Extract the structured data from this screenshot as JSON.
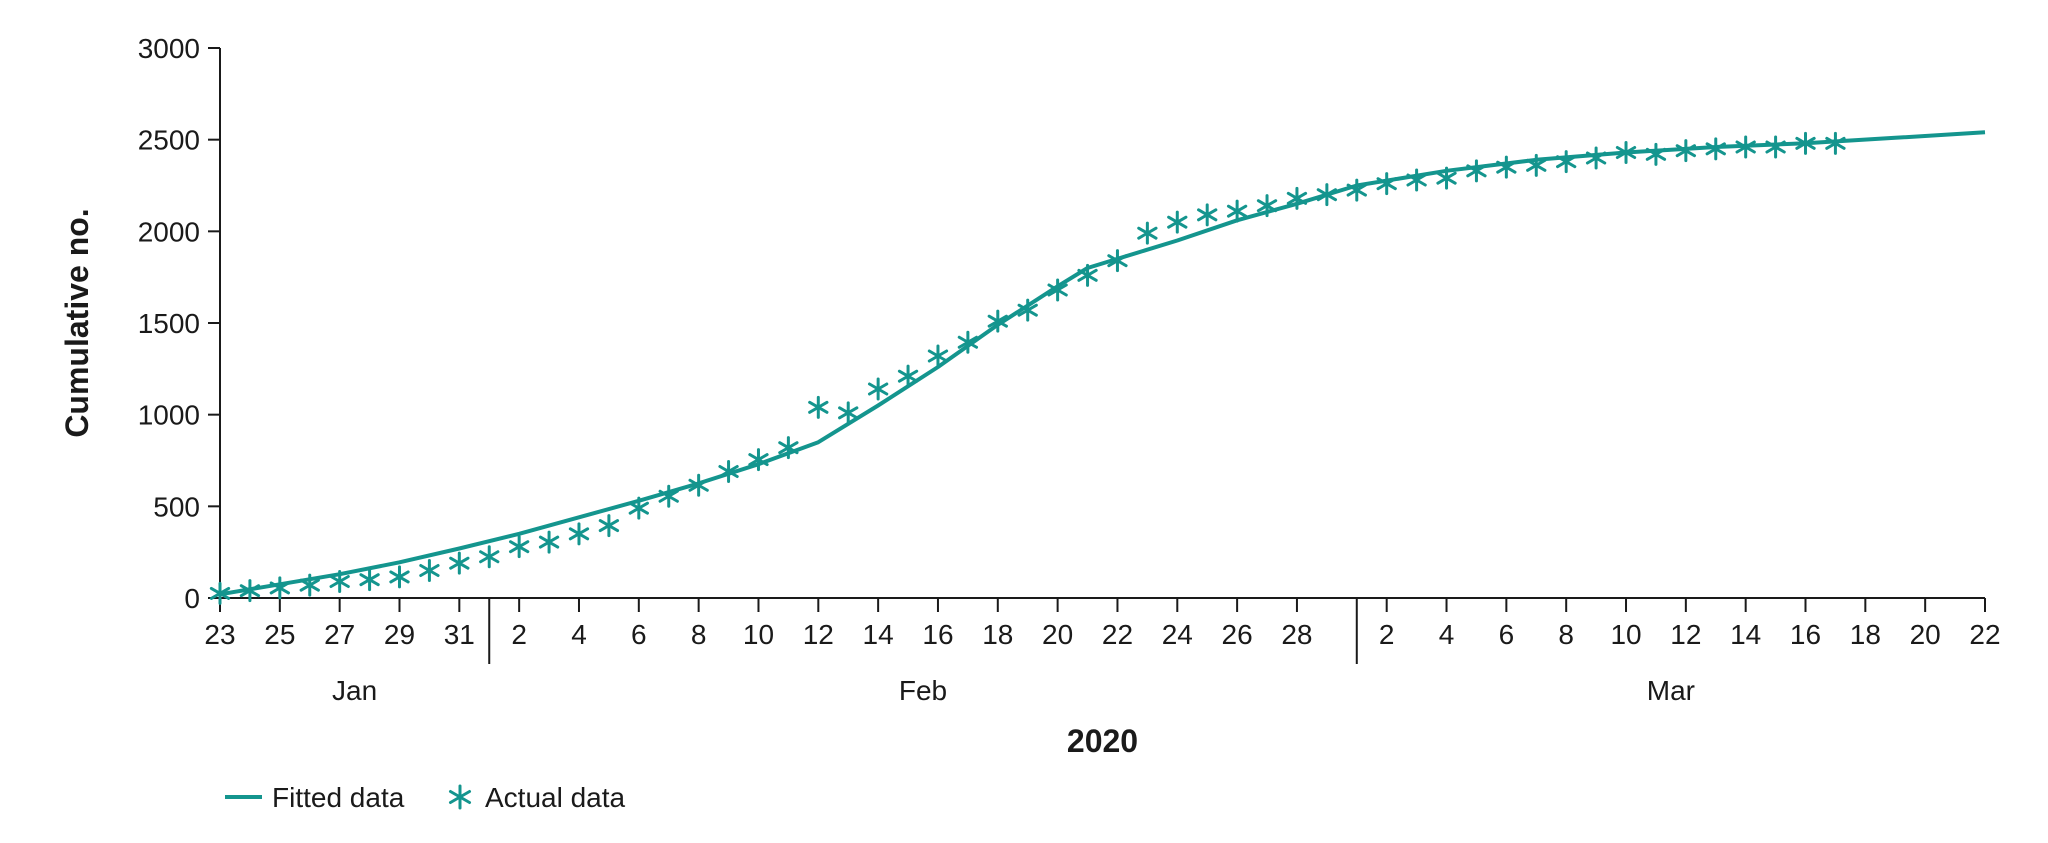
{
  "chart_data": {
    "type": "line",
    "ylabel": "Cumulative no.",
    "xlabel": "2020",
    "ylim": [
      0,
      3000
    ],
    "yticks": [
      0,
      500,
      1000,
      1500,
      2000,
      2500,
      3000
    ],
    "xlim": [
      "2020-01-23",
      "2020-03-22"
    ],
    "xtick_labels": [
      {
        "date": "2020-01-23",
        "label": "23"
      },
      {
        "date": "2020-01-25",
        "label": "25"
      },
      {
        "date": "2020-01-27",
        "label": "27"
      },
      {
        "date": "2020-01-29",
        "label": "29"
      },
      {
        "date": "2020-01-31",
        "label": "31"
      },
      {
        "date": "2020-02-02",
        "label": "2"
      },
      {
        "date": "2020-02-04",
        "label": "4"
      },
      {
        "date": "2020-02-06",
        "label": "6"
      },
      {
        "date": "2020-02-08",
        "label": "8"
      },
      {
        "date": "2020-02-10",
        "label": "10"
      },
      {
        "date": "2020-02-12",
        "label": "12"
      },
      {
        "date": "2020-02-14",
        "label": "14"
      },
      {
        "date": "2020-02-16",
        "label": "16"
      },
      {
        "date": "2020-02-18",
        "label": "18"
      },
      {
        "date": "2020-02-20",
        "label": "20"
      },
      {
        "date": "2020-02-22",
        "label": "22"
      },
      {
        "date": "2020-02-24",
        "label": "24"
      },
      {
        "date": "2020-02-26",
        "label": "26"
      },
      {
        "date": "2020-02-28",
        "label": "28"
      },
      {
        "date": "2020-03-02",
        "label": "2"
      },
      {
        "date": "2020-03-04",
        "label": "4"
      },
      {
        "date": "2020-03-06",
        "label": "6"
      },
      {
        "date": "2020-03-08",
        "label": "8"
      },
      {
        "date": "2020-03-10",
        "label": "10"
      },
      {
        "date": "2020-03-12",
        "label": "12"
      },
      {
        "date": "2020-03-14",
        "label": "14"
      },
      {
        "date": "2020-03-16",
        "label": "16"
      },
      {
        "date": "2020-03-18",
        "label": "18"
      },
      {
        "date": "2020-03-20",
        "label": "20"
      },
      {
        "date": "2020-03-22",
        "label": "22"
      }
    ],
    "months": [
      {
        "label": "Jan",
        "start": "2020-01-23",
        "end": "2020-02-01"
      },
      {
        "label": "Feb",
        "start": "2020-02-01",
        "end": "2020-03-01"
      },
      {
        "label": "Mar",
        "start": "2020-03-01",
        "end": "2020-03-22"
      }
    ],
    "color": "#14958e",
    "legend": {
      "position": "bottom-left"
    },
    "series": [
      {
        "name": "Fitted data",
        "type": "line",
        "x": [
          "2020-01-23",
          "2020-01-25",
          "2020-01-27",
          "2020-01-29",
          "2020-01-31",
          "2020-02-02",
          "2020-02-04",
          "2020-02-06",
          "2020-02-08",
          "2020-02-10",
          "2020-02-12",
          "2020-02-14",
          "2020-02-16",
          "2020-02-18",
          "2020-02-20",
          "2020-02-21",
          "2020-02-24",
          "2020-02-26",
          "2020-02-28",
          "2020-03-01",
          "2020-03-04",
          "2020-03-07",
          "2020-03-10",
          "2020-03-13",
          "2020-03-16",
          "2020-03-19",
          "2020-03-22"
        ],
        "y": [
          20,
          75,
          130,
          195,
          270,
          350,
          440,
          530,
          625,
          730,
          850,
          1050,
          1260,
          1490,
          1700,
          1800,
          1950,
          2060,
          2150,
          2250,
          2330,
          2390,
          2430,
          2460,
          2480,
          2510,
          2540
        ]
      },
      {
        "name": "Actual data",
        "type": "scatter",
        "marker": "asterisk",
        "x": [
          "2020-01-23",
          "2020-01-24",
          "2020-01-25",
          "2020-01-26",
          "2020-01-27",
          "2020-01-28",
          "2020-01-29",
          "2020-01-30",
          "2020-01-31",
          "2020-02-01",
          "2020-02-02",
          "2020-02-03",
          "2020-02-04",
          "2020-02-05",
          "2020-02-06",
          "2020-02-07",
          "2020-02-08",
          "2020-02-09",
          "2020-02-10",
          "2020-02-11",
          "2020-02-12",
          "2020-02-13",
          "2020-02-14",
          "2020-02-15",
          "2020-02-16",
          "2020-02-17",
          "2020-02-18",
          "2020-02-19",
          "2020-02-20",
          "2020-02-21",
          "2020-02-22",
          "2020-02-23",
          "2020-02-24",
          "2020-02-25",
          "2020-02-26",
          "2020-02-27",
          "2020-02-28",
          "2020-02-29",
          "2020-03-01",
          "2020-03-02",
          "2020-03-03",
          "2020-03-04",
          "2020-03-05",
          "2020-03-06",
          "2020-03-07",
          "2020-03-08",
          "2020-03-09",
          "2020-03-10",
          "2020-03-11",
          "2020-03-12",
          "2020-03-13",
          "2020-03-14",
          "2020-03-15",
          "2020-03-16",
          "2020-03-17"
        ],
        "y": [
          25,
          40,
          55,
          70,
          90,
          100,
          115,
          150,
          190,
          225,
          280,
          305,
          350,
          395,
          490,
          555,
          615,
          690,
          755,
          820,
          1040,
          1010,
          1140,
          1210,
          1320,
          1395,
          1510,
          1570,
          1680,
          1760,
          1840,
          1990,
          2050,
          2090,
          2110,
          2140,
          2180,
          2200,
          2225,
          2260,
          2280,
          2290,
          2330,
          2350,
          2360,
          2380,
          2400,
          2430,
          2420,
          2440,
          2450,
          2460,
          2460,
          2480,
          2480
        ]
      }
    ]
  }
}
